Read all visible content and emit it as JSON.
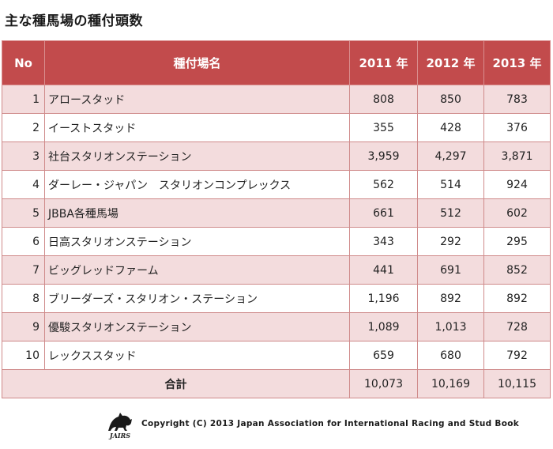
{
  "title": "主な種馬場の種付頭数",
  "table": {
    "headers": {
      "no": "No",
      "name": "種付場名",
      "y2011": "2011 年",
      "y2012": "2012 年",
      "y2013": "2013 年"
    },
    "rows": [
      {
        "no": "1",
        "name": "アロースタッド",
        "y2011": "808",
        "y2012": "850",
        "y2013": "783"
      },
      {
        "no": "2",
        "name": "イーストスタッド",
        "y2011": "355",
        "y2012": "428",
        "y2013": "376"
      },
      {
        "no": "3",
        "name": "社台スタリオンステーション",
        "y2011": "3,959",
        "y2012": "4,297",
        "y2013": "3,871"
      },
      {
        "no": "4",
        "name": "ダーレー・ジャパン　スタリオンコンプレックス",
        "y2011": "562",
        "y2012": "514",
        "y2013": "924"
      },
      {
        "no": "5",
        "name": "JBBA各種馬場",
        "y2011": "661",
        "y2012": "512",
        "y2013": "602"
      },
      {
        "no": "6",
        "name": "日高スタリオンステーション",
        "y2011": "343",
        "y2012": "292",
        "y2013": "295"
      },
      {
        "no": "7",
        "name": "ビッグレッドファーム",
        "y2011": "441",
        "y2012": "691",
        "y2013": "852"
      },
      {
        "no": "8",
        "name": "ブリーダーズ・スタリオン・ステーション",
        "y2011": "1,196",
        "y2012": "892",
        "y2013": "892"
      },
      {
        "no": "9",
        "name": "優駿スタリオンステーション",
        "y2011": "1,089",
        "y2012": "1,013",
        "y2013": "728"
      },
      {
        "no": "10",
        "name": "レックススタッド",
        "y2011": "659",
        "y2012": "680",
        "y2013": "792"
      }
    ],
    "total": {
      "label": "合計",
      "y2011": "10,073",
      "y2012": "10,169",
      "y2013": "10,115"
    }
  },
  "footer": {
    "logo_text": "JAIRS",
    "copyright": "Copyright (C) 2013 Japan Association for International Racing and Stud Book"
  },
  "colors": {
    "header_bg": "#c24b4c",
    "row_alt_bg": "#f3dcdd",
    "border": "#cf8a8a"
  }
}
